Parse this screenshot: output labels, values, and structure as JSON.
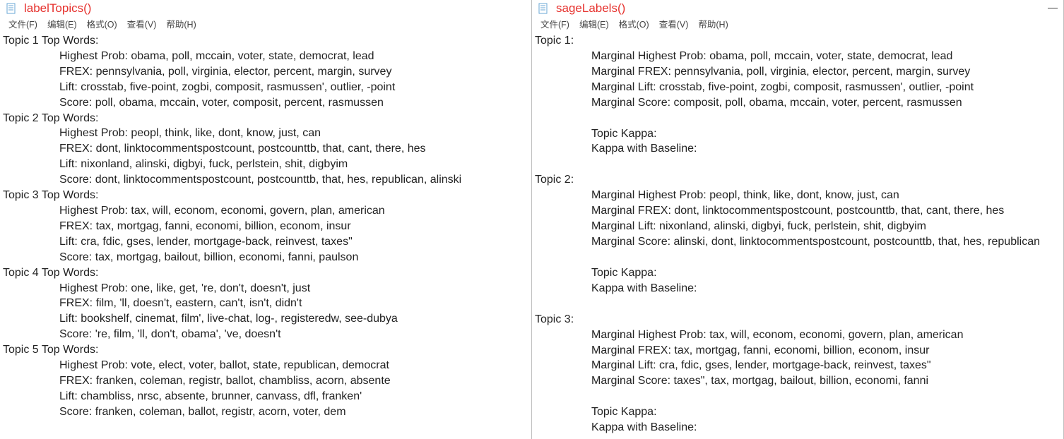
{
  "left": {
    "title": "labelTopics()",
    "menu": [
      "文件(F)",
      "编辑(E)",
      "格式(O)",
      "查看(V)",
      "帮助(H)"
    ],
    "topics": [
      {
        "header": "Topic 1 Top Words:",
        "lines": [
          "Highest Prob: obama, poll, mccain, voter, state, democrat, lead",
          "FREX: pennsylvania, poll, virginia, elector, percent, margin, survey",
          "Lift: crosstab, five-point, zogbi, composit, rasmussen', outlier, -point",
          "Score: poll, obama, mccain, voter, composit, percent, rasmussen"
        ]
      },
      {
        "header": "Topic 2 Top Words:",
        "lines": [
          "Highest Prob: peopl, think, like, dont, know, just, can",
          "FREX: dont, linktocommentspostcount, postcounttb, that, cant, there, hes",
          "Lift: nixonland, alinski, digbyi, fuck, perlstein, shit, digbyim",
          "Score: dont, linktocommentspostcount, postcounttb, that, hes, republican, alinski"
        ]
      },
      {
        "header": "Topic 3 Top Words:",
        "lines": [
          "Highest Prob: tax, will, econom, economi, govern, plan, american",
          "FREX: tax, mortgag, fanni, economi, billion, econom, insur",
          "Lift: cra, fdic, gses, lender, mortgage-back, reinvest, taxes\"",
          "Score: tax, mortgag, bailout, billion, economi, fanni, paulson"
        ]
      },
      {
        "header": "Topic 4 Top Words:",
        "lines": [
          "Highest Prob: one, like, get, 're, don't, doesn't, just",
          "FREX: film, 'll, doesn't, eastern, can't, isn't, didn't",
          "Lift: bookshelf, cinemat, film', live-chat, log-, registeredw, see-dubya",
          "Score: 're, film, 'll, don't, obama', 've, doesn't"
        ]
      },
      {
        "header": "Topic 5 Top Words:",
        "lines": [
          "Highest Prob: vote, elect, voter, ballot, state, republican, democrat",
          "FREX: franken, coleman, registr, ballot, chambliss, acorn, absente",
          "Lift: chambliss, nrsc, absente, brunner, canvass, dfl, franken'",
          "Score: franken, coleman, ballot, registr, acorn, voter, dem"
        ]
      }
    ]
  },
  "right": {
    "title": "sageLabels()",
    "menu": [
      "文件(F)",
      "编辑(E)",
      "格式(O)",
      "查看(V)",
      "帮助(H)"
    ],
    "win_controls": {
      "min": "—",
      "max": "",
      "close": ""
    },
    "topics": [
      {
        "header": "Topic 1:",
        "lines": [
          "Marginal Highest Prob: obama, poll, mccain, voter, state, democrat, lead",
          "Marginal FREX: pennsylvania, poll, virginia, elector, percent, margin, survey",
          "Marginal Lift: crosstab, five-point, zogbi, composit, rasmussen', outlier, -point",
          "Marginal Score: composit, poll, obama, mccain, voter, percent, rasmussen",
          "",
          "Topic Kappa:",
          "Kappa with Baseline:"
        ]
      },
      {
        "header": "Topic 2:",
        "lines": [
          "Marginal Highest Prob: peopl, think, like, dont, know, just, can",
          "Marginal FREX: dont, linktocommentspostcount, postcounttb, that, cant, there, hes",
          "Marginal Lift: nixonland, alinski, digbyi, fuck, perlstein, shit, digbyim",
          "Marginal Score: alinski, dont, linktocommentspostcount, postcounttb, that, hes, republican",
          "",
          "Topic Kappa:",
          "Kappa with Baseline:"
        ]
      },
      {
        "header": "Topic 3:",
        "lines": [
          "Marginal Highest Prob: tax, will, econom, economi, govern, plan, american",
          "Marginal FREX: tax, mortgag, fanni, economi, billion, econom, insur",
          "Marginal Lift: cra, fdic, gses, lender, mortgage-back, reinvest, taxes\"",
          "Marginal Score: taxes\", tax, mortgag, bailout, billion, economi, fanni",
          "",
          "Topic Kappa:",
          "Kappa with Baseline:"
        ]
      }
    ]
  }
}
